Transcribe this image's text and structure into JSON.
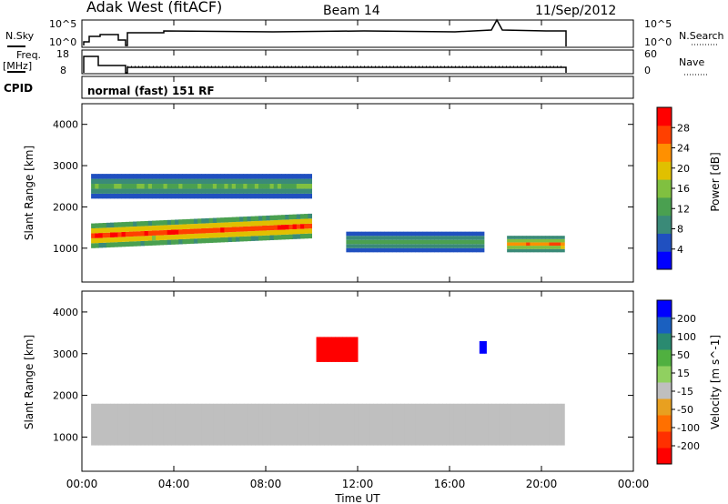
{
  "header": {
    "station": "Adak West (fitACF)",
    "beam": "Beam 14",
    "date": "11/Sep/2012"
  },
  "strip_labels": {
    "nsky": "N.Sky",
    "nsearch": "N.Search",
    "freq_line1": "Freq.",
    "freq_line2": "[MHz]",
    "nave": "Nave",
    "cpid": "CPID",
    "cpid_value": "normal (fast) 151 RF"
  },
  "noise_strip": {
    "left_ticks": [
      "10^5",
      "10^0"
    ],
    "right_ticks": [
      "10^5",
      "10^0"
    ]
  },
  "freq_strip": {
    "left_ticks": [
      "18",
      "8"
    ],
    "right_ticks": [
      "60",
      "0"
    ]
  },
  "power_panel": {
    "ylabel": "Slant Range [km]",
    "colorbar_label": "Power [dB]",
    "colorbar_ticks": [
      "28",
      "24",
      "20",
      "16",
      "12",
      "8",
      "4"
    ],
    "colors": [
      "#0000ff",
      "#2050c0",
      "#3a8a78",
      "#4aa050",
      "#80c040",
      "#e0c000",
      "#ff9000",
      "#ff4000",
      "#ff0000"
    ]
  },
  "velocity_panel": {
    "ylabel": "Slant Range [km]",
    "colorbar_label": "Velocity [m s^-1]",
    "colorbar_ticks": [
      "200",
      "100",
      "50",
      "15",
      "-15",
      "-50",
      "-100",
      "-200"
    ],
    "colors": [
      "#0000ff",
      "#1a60c0",
      "#2a8a70",
      "#50b040",
      "#90d060",
      "#bfbfbf",
      "#e8a020",
      "#ff7000",
      "#ff3000",
      "#ff0000"
    ]
  },
  "x_axis": {
    "label": "Time UT",
    "ticks": [
      "00:00",
      "04:00",
      "08:00",
      "12:00",
      "16:00",
      "20:00",
      "00:00"
    ]
  },
  "chart_data": {
    "type": "heatmap",
    "xlabel": "Time UT",
    "ylabel": "Slant Range [km]",
    "xlim": [
      0,
      24
    ],
    "ylim": [
      180,
      4500
    ],
    "y_ticks": [
      1000,
      2000,
      3000,
      4000
    ],
    "power_bands": [
      {
        "t_start": 0.4,
        "t_end": 10.0,
        "range_start": 1000,
        "range_end": 1600,
        "power_db": 28
      },
      {
        "t_start": 0.4,
        "t_end": 10.0,
        "range_start": 2200,
        "range_end": 2800,
        "power_db": 14
      },
      {
        "t_start": 11.5,
        "t_end": 17.5,
        "range_start": 900,
        "range_end": 1400,
        "power_db": 12
      },
      {
        "t_start": 18.5,
        "t_end": 21.0,
        "range_start": 900,
        "range_end": 1300,
        "power_db": 24
      }
    ],
    "velocity_bands": [
      {
        "t_start": 0.4,
        "t_end": 21.0,
        "range_start": 800,
        "range_end": 1800,
        "velocity": 0
      },
      {
        "t_start": 10.2,
        "t_end": 12.0,
        "range_start": 2800,
        "range_end": 3400,
        "velocity": -200
      },
      {
        "t_start": 17.3,
        "t_end": 17.6,
        "range_start": 3000,
        "range_end": 3300,
        "velocity": 200
      }
    ]
  }
}
